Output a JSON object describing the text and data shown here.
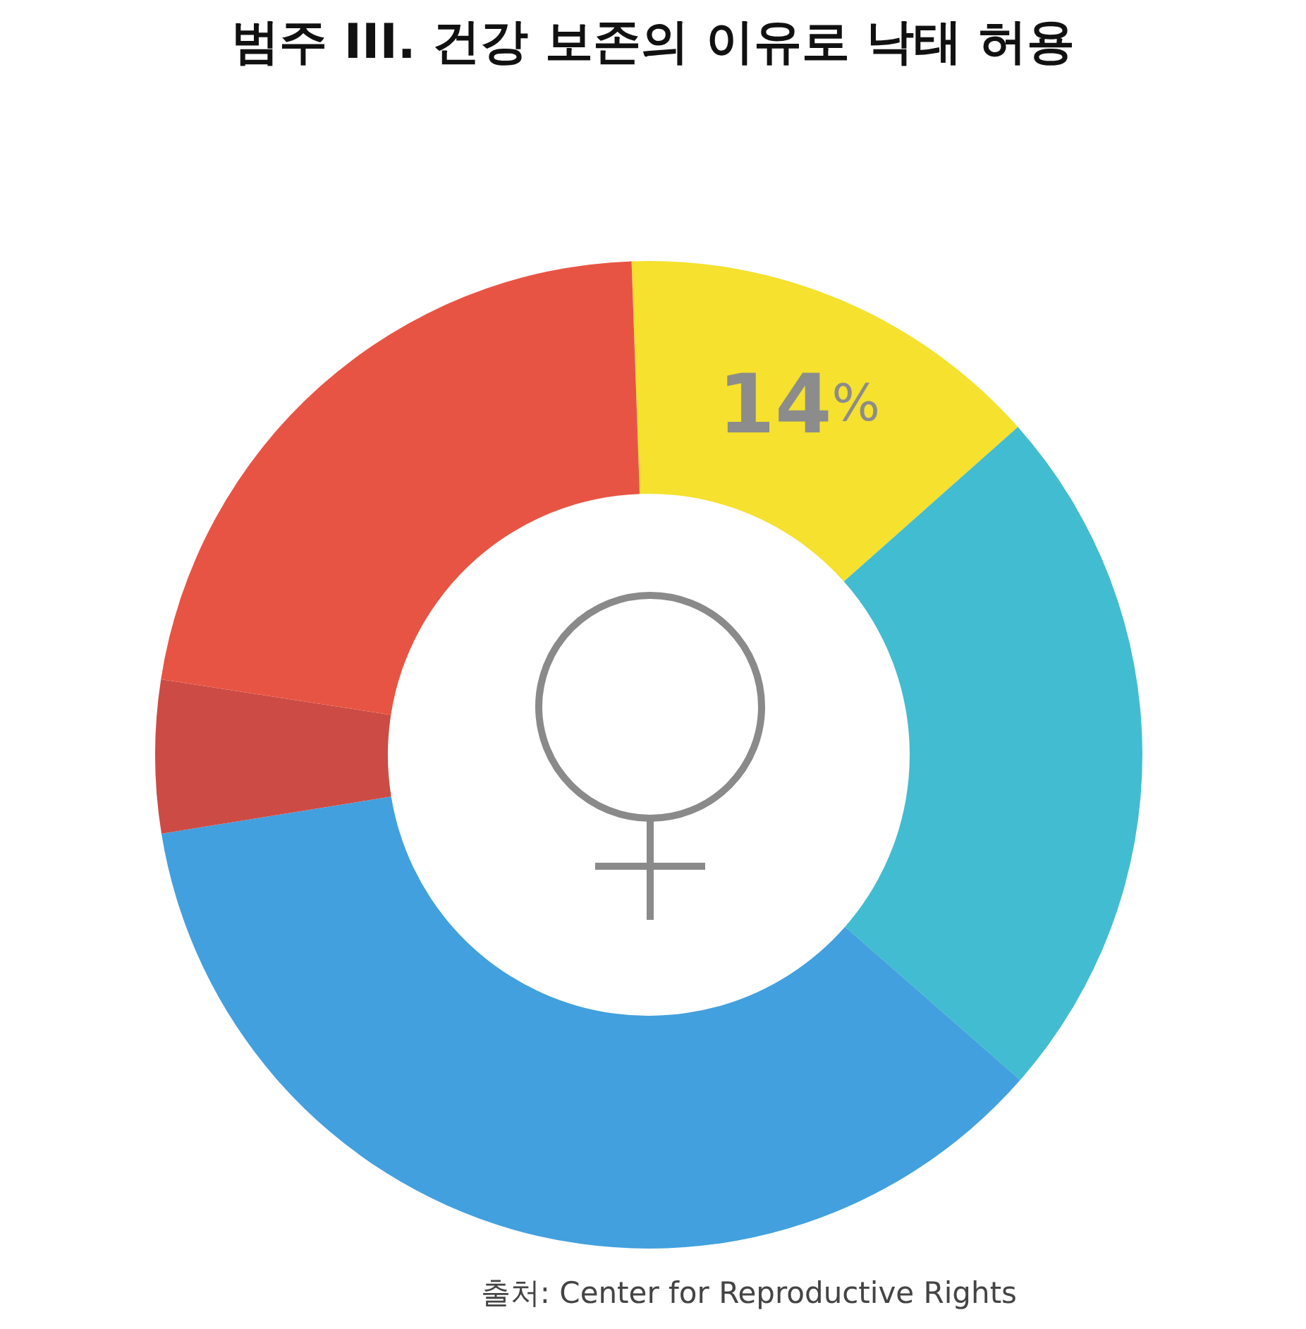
{
  "chart_data": {
    "type": "donut",
    "title": "범주 III. 건강 보존의 이유로 낙태 허용",
    "categories": [
      null,
      null,
      null,
      null,
      null
    ],
    "values": [
      14,
      23,
      36,
      5,
      22
    ],
    "value_labels": [
      "14%",
      null,
      null,
      null,
      null
    ],
    "colors": [
      "#f5e12e",
      "#42bcd0",
      "#42a0de",
      "#cc4b45",
      "#e85443"
    ],
    "annotations": [
      "출처: Center for Reproductive Rights"
    ]
  }
}
